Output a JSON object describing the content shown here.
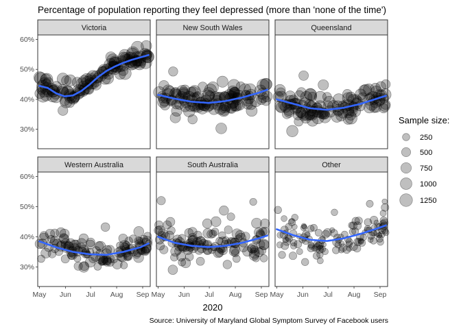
{
  "chart_data": {
    "type": "scatter",
    "title": "Percentage of population reporting they feel depressed (more than 'none of the time')",
    "xlabel": "2020",
    "ylabel": "",
    "caption": "Source: University of Maryland Global Symptom Survey of Facebook users",
    "x_ticks": [
      "May",
      "Jun",
      "Jul",
      "Aug",
      "Sep"
    ],
    "x_tick_days": [
      0,
      31,
      61,
      92,
      123
    ],
    "x_range_days": [
      -2,
      132
    ],
    "y_ticks": [
      "30%",
      "40%",
      "50%",
      "60%"
    ],
    "y_tick_values": [
      30,
      40,
      50,
      60
    ],
    "ylim": [
      23.5,
      61.5
    ],
    "legend": {
      "title": "Sample size:",
      "entries": [
        "250",
        "500",
        "750",
        "1000",
        "1250"
      ],
      "values": [
        250,
        500,
        750,
        1000,
        1250
      ]
    },
    "point_color": "#000000",
    "smooth_color": "#3366ff",
    "panels": [
      {
        "name": "Victoria",
        "smooth": [
          [
            0,
            44.5
          ],
          [
            10,
            43.8
          ],
          [
            20,
            42.0
          ],
          [
            30,
            41.0
          ],
          [
            40,
            41.3
          ],
          [
            50,
            42.8
          ],
          [
            60,
            45.0
          ],
          [
            70,
            47.5
          ],
          [
            80,
            49.5
          ],
          [
            90,
            51.0
          ],
          [
            100,
            52.2
          ],
          [
            110,
            53.2
          ],
          [
            120,
            54.0
          ],
          [
            130,
            54.8
          ]
        ],
        "noise": 2.0,
        "size_mean": 900,
        "size_spread": 300,
        "n": 125
      },
      {
        "name": "New South Wales",
        "smooth": [
          [
            0,
            41.5
          ],
          [
            20,
            40.2
          ],
          [
            40,
            39.2
          ],
          [
            60,
            38.8
          ],
          [
            80,
            39.4
          ],
          [
            100,
            40.6
          ],
          [
            120,
            42.2
          ],
          [
            130,
            43.2
          ]
        ],
        "noise": 2.5,
        "size_mean": 800,
        "size_spread": 300,
        "n": 125
      },
      {
        "name": "Queensland",
        "smooth": [
          [
            0,
            40.0
          ],
          [
            20,
            38.5
          ],
          [
            40,
            37.0
          ],
          [
            60,
            36.5
          ],
          [
            80,
            37.2
          ],
          [
            100,
            38.5
          ],
          [
            120,
            40.3
          ],
          [
            130,
            41.2
          ]
        ],
        "noise": 2.8,
        "size_mean": 750,
        "size_spread": 300,
        "n": 125
      },
      {
        "name": "Western Australia",
        "smooth": [
          [
            0,
            38.5
          ],
          [
            20,
            36.5
          ],
          [
            40,
            35.0
          ],
          [
            60,
            34.2
          ],
          [
            80,
            34.0
          ],
          [
            100,
            35.0
          ],
          [
            120,
            36.5
          ],
          [
            130,
            37.8
          ]
        ],
        "noise": 2.8,
        "size_mean": 450,
        "size_spread": 250,
        "n": 125
      },
      {
        "name": "South Australia",
        "smooth": [
          [
            0,
            40.0
          ],
          [
            20,
            38.0
          ],
          [
            40,
            37.0
          ],
          [
            60,
            36.6
          ],
          [
            80,
            37.0
          ],
          [
            100,
            38.0
          ],
          [
            120,
            39.5
          ],
          [
            130,
            40.4
          ]
        ],
        "noise": 3.5,
        "size_mean": 450,
        "size_spread": 250,
        "n": 125
      },
      {
        "name": "Other",
        "smooth": [
          [
            0,
            42.5
          ],
          [
            20,
            40.5
          ],
          [
            40,
            39.0
          ],
          [
            60,
            38.6
          ],
          [
            80,
            39.5
          ],
          [
            100,
            41.0
          ],
          [
            120,
            42.8
          ],
          [
            130,
            43.8
          ]
        ],
        "noise": 4.0,
        "size_mean": 200,
        "size_spread": 150,
        "n": 125
      }
    ]
  }
}
